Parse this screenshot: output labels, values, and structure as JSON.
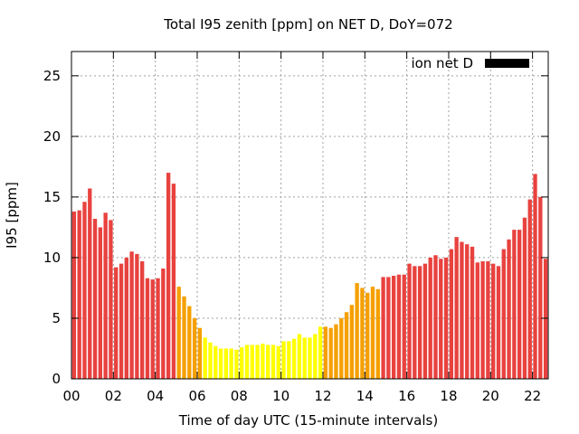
{
  "chart_data": {
    "type": "bar",
    "title": "Total I95 zenith [ppm] on NET D, DoY=072",
    "xlabel": "Time of day UTC (15-minute intervals)",
    "ylabel": "I95 [ppm]",
    "xlim": [
      0,
      22.75
    ],
    "ylim": [
      0,
      27
    ],
    "xticks": [
      "00",
      "02",
      "04",
      "06",
      "08",
      "10",
      "12",
      "14",
      "16",
      "18",
      "20",
      "22"
    ],
    "yticks": [
      "0",
      "5",
      "10",
      "15",
      "20",
      "25"
    ],
    "grid": true,
    "legend": {
      "label": "ion net D",
      "position": "top-right",
      "color": "#000000"
    },
    "bar_colors": {
      "red": "#e8423f",
      "orange": "#f5a000",
      "yellow": "#ffff00"
    },
    "x": [
      0.0,
      0.25,
      0.5,
      0.75,
      1.0,
      1.25,
      1.5,
      1.75,
      2.0,
      2.25,
      2.5,
      2.75,
      3.0,
      3.25,
      3.5,
      3.75,
      4.0,
      4.25,
      4.5,
      4.75,
      5.0,
      5.25,
      5.5,
      5.75,
      6.0,
      6.25,
      6.5,
      6.75,
      7.0,
      7.25,
      7.5,
      7.75,
      8.0,
      8.25,
      8.5,
      8.75,
      9.0,
      9.25,
      9.5,
      9.75,
      10.0,
      10.25,
      10.5,
      10.75,
      11.0,
      11.25,
      11.5,
      11.75,
      12.0,
      12.25,
      12.5,
      12.75,
      13.0,
      13.25,
      13.5,
      13.75,
      14.0,
      14.25,
      14.5,
      14.75,
      15.0,
      15.25,
      15.5,
      15.75,
      16.0,
      16.25,
      16.5,
      16.75,
      17.0,
      17.25,
      17.5,
      17.75,
      18.0,
      18.25,
      18.5,
      18.75,
      19.0,
      19.25,
      19.5,
      19.75,
      20.0,
      20.25,
      20.5,
      20.75,
      21.0,
      21.25,
      21.5,
      21.75,
      22.0,
      22.25,
      22.5,
      22.75
    ],
    "values": [
      13.8,
      13.9,
      14.6,
      15.7,
      13.2,
      12.5,
      13.7,
      13.1,
      9.2,
      9.5,
      10.0,
      10.5,
      10.3,
      9.7,
      8.3,
      8.2,
      8.3,
      9.1,
      17.0,
      16.1,
      7.6,
      6.8,
      6.0,
      5.0,
      4.2,
      3.4,
      3.0,
      2.7,
      2.5,
      2.5,
      2.5,
      2.4,
      2.6,
      2.8,
      2.8,
      2.8,
      2.9,
      2.8,
      2.8,
      2.7,
      3.1,
      3.1,
      3.3,
      3.7,
      3.4,
      3.4,
      3.7,
      4.3,
      4.3,
      4.2,
      4.5,
      5.0,
      5.5,
      6.1,
      7.9,
      7.5,
      7.1,
      7.6,
      7.4,
      8.4,
      8.4,
      8.5,
      8.6,
      8.6,
      9.5,
      9.3,
      9.3,
      9.5,
      10.0,
      10.2,
      9.9,
      10.0,
      10.7,
      11.7,
      11.3,
      11.1,
      10.9,
      9.6,
      9.7,
      9.7,
      9.5,
      9.3,
      10.7,
      11.5,
      12.3,
      12.3,
      13.3,
      14.8,
      16.9,
      15.0,
      9.9,
      9.8
    ],
    "colors": [
      "red",
      "red",
      "red",
      "red",
      "red",
      "red",
      "red",
      "red",
      "red",
      "red",
      "red",
      "red",
      "red",
      "red",
      "red",
      "red",
      "red",
      "red",
      "red",
      "red",
      "orange",
      "orange",
      "orange",
      "orange",
      "orange",
      "yellow",
      "yellow",
      "yellow",
      "yellow",
      "yellow",
      "yellow",
      "yellow",
      "yellow",
      "yellow",
      "yellow",
      "yellow",
      "yellow",
      "yellow",
      "yellow",
      "yellow",
      "yellow",
      "yellow",
      "yellow",
      "yellow",
      "yellow",
      "yellow",
      "yellow",
      "yellow",
      "orange",
      "orange",
      "orange",
      "orange",
      "orange",
      "orange",
      "orange",
      "orange",
      "orange",
      "orange",
      "orange",
      "red",
      "red",
      "red",
      "red",
      "red",
      "red",
      "red",
      "red",
      "red",
      "red",
      "red",
      "red",
      "red",
      "red",
      "red",
      "red",
      "red",
      "red",
      "red",
      "red",
      "red",
      "red",
      "red",
      "red",
      "red",
      "red",
      "red",
      "red",
      "red",
      "red",
      "red",
      "red",
      "red"
    ]
  }
}
